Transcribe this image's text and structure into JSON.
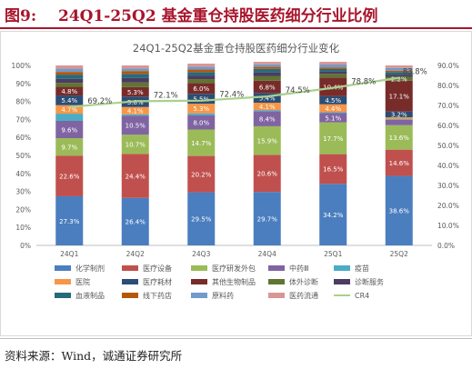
{
  "figure": {
    "number": "图9:",
    "title": "24Q1-25Q2 基金重仓持股医药细分行业比例",
    "source": "资料来源：Wind，诚通证券研究所"
  },
  "colors": {
    "title_red": "#a8152c",
    "cr4_line": "#a9d18e"
  },
  "chart_data": {
    "type": "bar",
    "stacked": true,
    "title": "24Q1-25Q2基金重仓持股医药细分行业变化",
    "categories": [
      "24Q1",
      "24Q2",
      "24Q3",
      "24Q4",
      "25Q1",
      "25Q2"
    ],
    "y_left": {
      "lim": [
        0,
        100
      ],
      "ticks": [
        "0%",
        "10%",
        "20%",
        "30%",
        "40%",
        "50%",
        "60%",
        "70%",
        "80%",
        "90%",
        "100%"
      ]
    },
    "y_right": {
      "lim": [
        0,
        90
      ],
      "ticks": [
        "0.0%",
        "10.0%",
        "20.0%",
        "30.0%",
        "40.0%",
        "50.0%",
        "60.0%",
        "70.0%",
        "80.0%",
        "90.0%"
      ]
    },
    "series": [
      {
        "name": "化学制剂",
        "color": "#4a7ebf",
        "values": [
          27.3,
          26.4,
          29.5,
          29.7,
          34.2,
          38.6
        ],
        "labels": [
          "27.3%",
          "26.4%",
          "29.5%",
          "29.7%",
          "34.2%",
          "38.6%"
        ]
      },
      {
        "name": "医疗设备",
        "color": "#c0504d",
        "values": [
          22.6,
          24.4,
          20.2,
          20.6,
          16.5,
          14.6
        ],
        "labels": [
          "22.6%",
          "24.4%",
          "20.2%",
          "20.6%",
          "16.5%",
          "14.6%"
        ]
      },
      {
        "name": "医疗研发外包",
        "color": "#9bbb59",
        "values": [
          9.7,
          10.7,
          14.7,
          15.9,
          17.7,
          13.6
        ],
        "labels": [
          "9.7%",
          "10.7%",
          "14.7%",
          "15.9%",
          "17.7%",
          "13.6%"
        ]
      },
      {
        "name": "中药Ⅲ",
        "color": "#8064a2",
        "values": [
          9.6,
          10.5,
          8.0,
          8.4,
          5.1,
          3.0
        ],
        "labels": [
          "9.6%",
          "10.5%",
          "8.0%",
          "8.4%",
          "5.1%",
          ""
        ]
      },
      {
        "name": "疫苗",
        "color": "#4bacc6",
        "values": [
          4.0,
          0.8,
          1.0,
          0.6,
          0.5,
          0.4
        ],
        "labels": [
          "",
          "",
          "",
          "",
          "",
          ""
        ]
      },
      {
        "name": "医院",
        "color": "#f79646",
        "values": [
          4.7,
          4.1,
          5.3,
          4.1,
          4.4,
          1.0
        ],
        "labels": [
          "4.7%",
          "4.1%",
          "5.3%",
          "4.1%",
          "4.4%",
          ""
        ]
      },
      {
        "name": "医疗耗材",
        "color": "#2c4d75",
        "values": [
          5.4,
          5.8,
          5.5,
          5.4,
          4.5,
          3.2
        ],
        "labels": [
          "5.4%",
          "5.8%",
          "5.5%",
          "5.4%",
          "4.5%",
          "3.2%"
        ]
      },
      {
        "name": "其他生物制品",
        "color": "#772c2a",
        "values": [
          4.8,
          5.3,
          6.0,
          6.8,
          10.4,
          17.1
        ],
        "labels": [
          "4.8%",
          "5.3%",
          "6.0%",
          "6.8%",
          "10.4%",
          "17.1%"
        ]
      },
      {
        "name": "体外诊断",
        "color": "#5f7530",
        "values": [
          2.2,
          2.5,
          2.2,
          2.5,
          2.0,
          2.2
        ],
        "labels": [
          "",
          "",
          "",
          "",
          "",
          "2.2%"
        ]
      },
      {
        "name": "诊断服务",
        "color": "#4d3b62",
        "values": [
          2.2,
          2.5,
          2.0,
          2.0,
          1.2,
          1.2
        ],
        "labels": [
          "",
          "",
          "",
          "",
          "",
          ""
        ]
      },
      {
        "name": "血液制品",
        "color": "#276a7c",
        "values": [
          2.4,
          2.3,
          1.9,
          2.1,
          1.5,
          1.4
        ],
        "labels": [
          "",
          "",
          "",
          "",
          "",
          ""
        ]
      },
      {
        "name": "线下药店",
        "color": "#b65708",
        "values": [
          1.5,
          1.6,
          1.4,
          1.1,
          0.9,
          0.8
        ],
        "labels": [
          "",
          "",
          "",
          "",
          "",
          ""
        ]
      },
      {
        "name": "原料药",
        "color": "#729aca",
        "values": [
          1.8,
          1.5,
          1.6,
          1.4,
          1.6,
          1.5
        ],
        "labels": [
          "",
          "",
          "",
          "",
          "",
          ""
        ]
      },
      {
        "name": "医药流通",
        "color": "#d99694",
        "values": [
          1.8,
          1.6,
          1.7,
          1.4,
          1.5,
          1.4
        ],
        "labels": [
          "",
          "",
          "",
          "",
          "",
          ""
        ]
      }
    ],
    "line": {
      "name": "CR4",
      "values": [
        69.2,
        72.1,
        72.4,
        74.5,
        78.8,
        83.8
      ],
      "labels": [
        "69.2%",
        "72.1%",
        "72.4%",
        "74.5%",
        "78.8%",
        "83.8%"
      ],
      "axis": "right"
    },
    "legend_position": "bottom"
  }
}
